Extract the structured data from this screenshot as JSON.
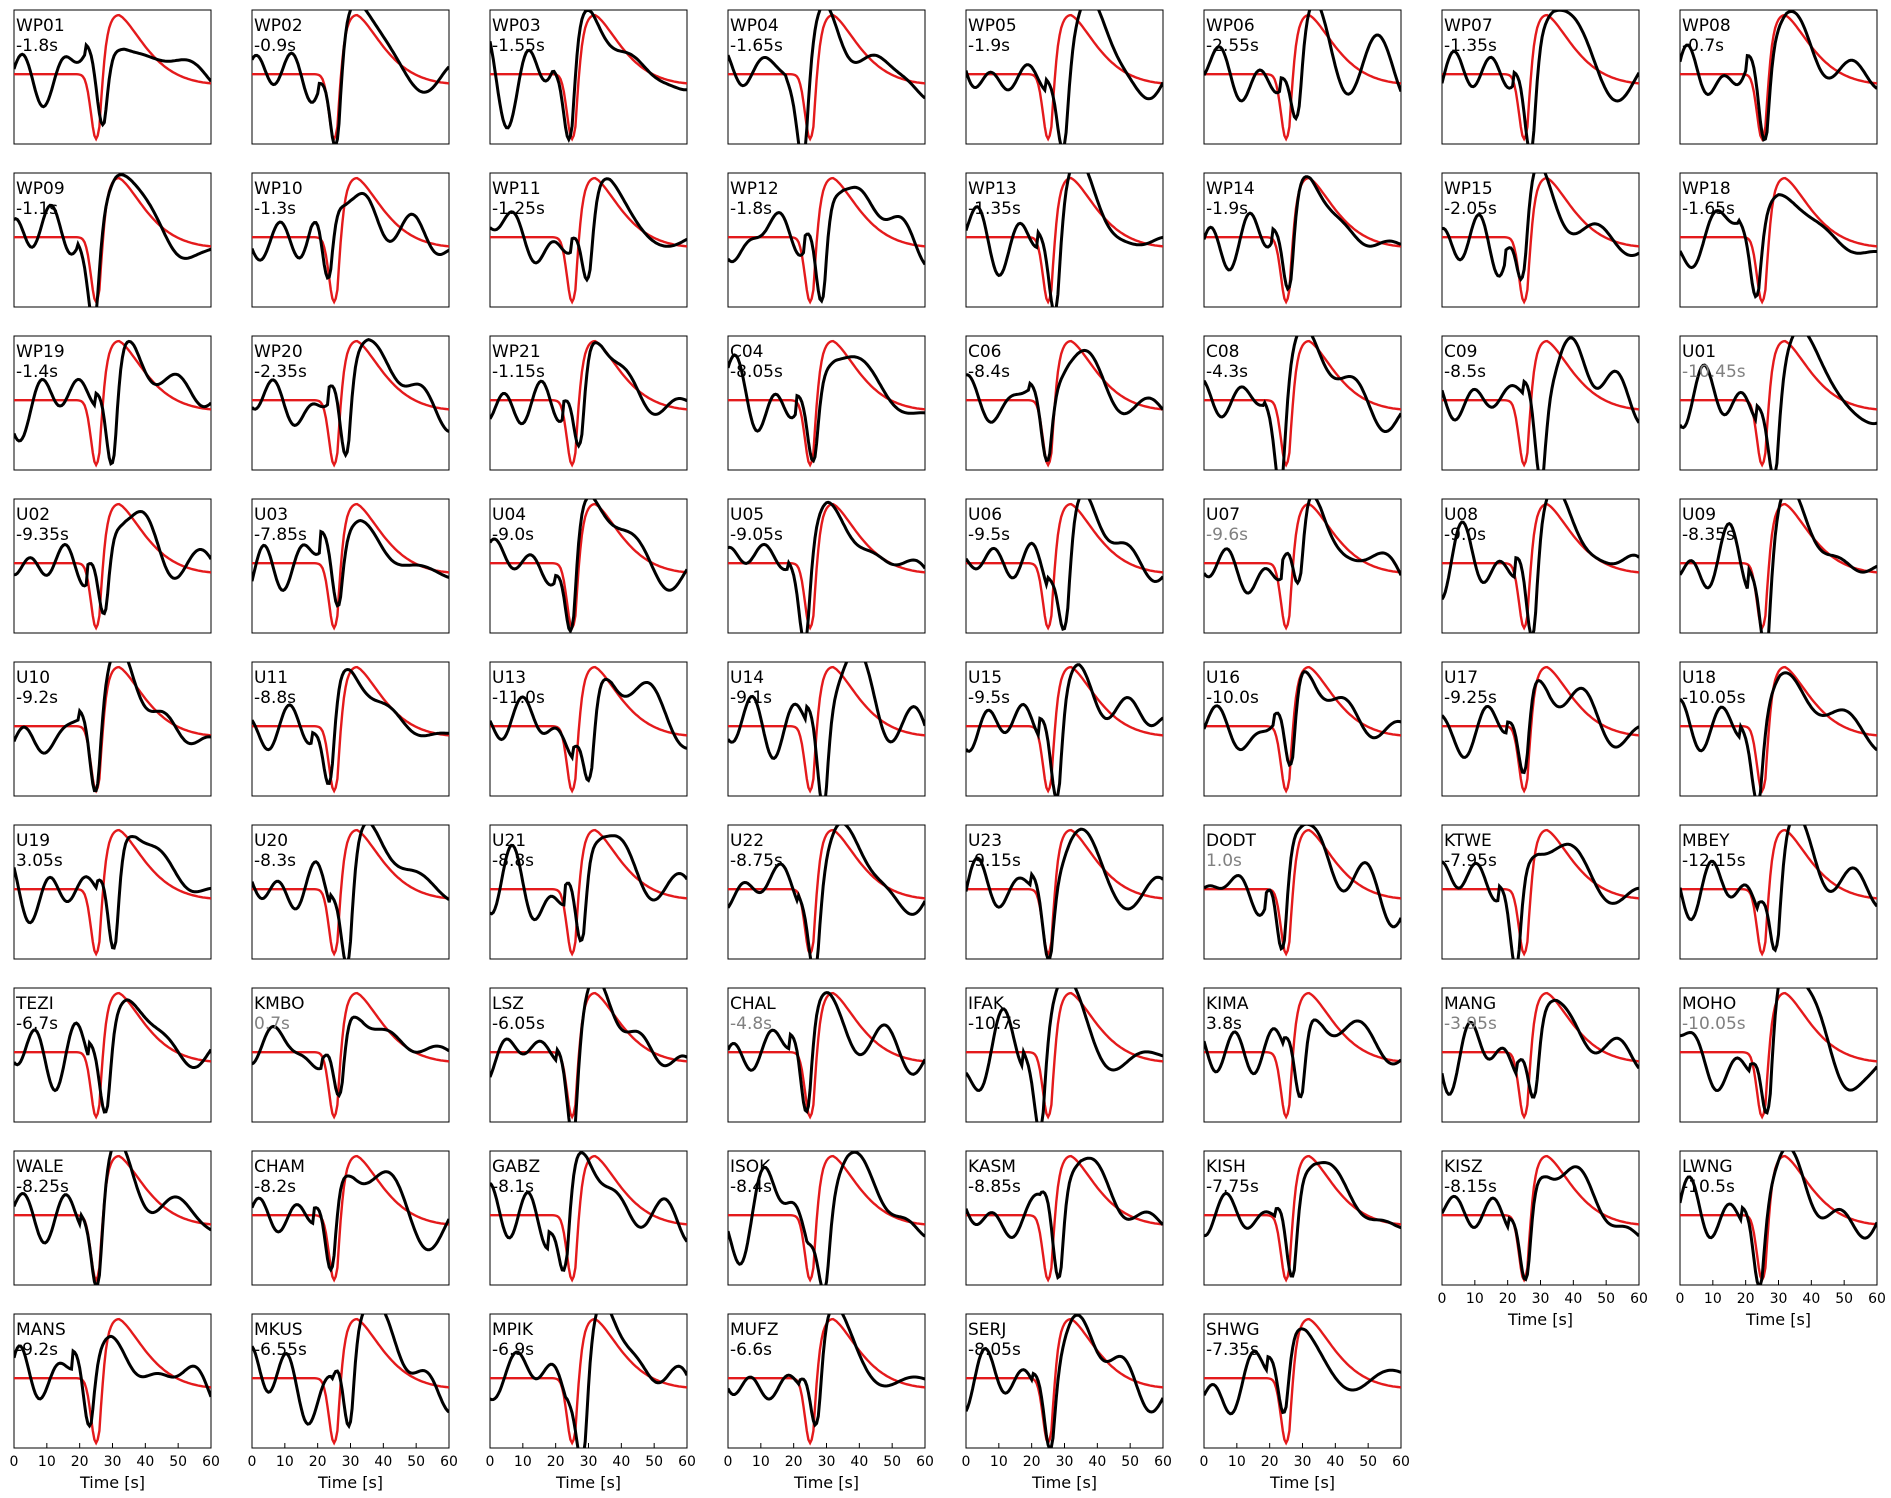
{
  "chart_data": {
    "type": "line",
    "layout": "small-multiples",
    "xlabel": "Time [s]",
    "xlim": [
      0,
      60
    ],
    "xticks": [
      0,
      10,
      20,
      30,
      40,
      50,
      60
    ],
    "series_styles": {
      "reference": "#e41a1c",
      "observed": "#000000",
      "label_normal": "#000000",
      "label_grey": "#808080"
    },
    "panels": [
      {
        "station": "WP01",
        "shift": "-1.8s",
        "grey": false,
        "variant": 0
      },
      {
        "station": "WP02",
        "shift": "-0.9s",
        "grey": false,
        "variant": 1
      },
      {
        "station": "WP03",
        "shift": "-1.55s",
        "grey": false,
        "variant": 2
      },
      {
        "station": "WP04",
        "shift": "-1.65s",
        "grey": false,
        "variant": 3
      },
      {
        "station": "WP05",
        "shift": "-1.9s",
        "grey": false,
        "variant": 4
      },
      {
        "station": "WP06",
        "shift": "-2.55s",
        "grey": false,
        "variant": 5
      },
      {
        "station": "WP07",
        "shift": "-1.35s",
        "grey": false,
        "variant": 6
      },
      {
        "station": "WP08",
        "shift": "-0.7s",
        "grey": false,
        "variant": 7
      },
      {
        "station": "WP09",
        "shift": "-1.1s",
        "grey": false,
        "variant": 8
      },
      {
        "station": "WP10",
        "shift": "-1.3s",
        "grey": false,
        "variant": 9
      },
      {
        "station": "WP11",
        "shift": "-1.25s",
        "grey": false,
        "variant": 10
      },
      {
        "station": "WP12",
        "shift": "-1.8s",
        "grey": false,
        "variant": 11
      },
      {
        "station": "WP13",
        "shift": "-1.35s",
        "grey": false,
        "variant": 12
      },
      {
        "station": "WP14",
        "shift": "-1.9s",
        "grey": false,
        "variant": 13
      },
      {
        "station": "WP15",
        "shift": "-2.05s",
        "grey": false,
        "variant": 14
      },
      {
        "station": "WP18",
        "shift": "-1.65s",
        "grey": false,
        "variant": 15
      },
      {
        "station": "WP19",
        "shift": "-1.4s",
        "grey": false,
        "variant": 16
      },
      {
        "station": "WP20",
        "shift": "-2.35s",
        "grey": false,
        "variant": 17
      },
      {
        "station": "WP21",
        "shift": "-1.15s",
        "grey": false,
        "variant": 18
      },
      {
        "station": "C04",
        "shift": "-8.05s",
        "grey": false,
        "variant": 19
      },
      {
        "station": "C06",
        "shift": "-8.4s",
        "grey": false,
        "variant": 20
      },
      {
        "station": "C08",
        "shift": "-4.3s",
        "grey": false,
        "variant": 21
      },
      {
        "station": "C09",
        "shift": "-8.5s",
        "grey": false,
        "variant": 22
      },
      {
        "station": "U01",
        "shift": "-10.45s",
        "grey": true,
        "variant": 23
      },
      {
        "station": "U02",
        "shift": "-9.35s",
        "grey": false,
        "variant": 24
      },
      {
        "station": "U03",
        "shift": "-7.85s",
        "grey": false,
        "variant": 25
      },
      {
        "station": "U04",
        "shift": "-9.0s",
        "grey": false,
        "variant": 26
      },
      {
        "station": "U05",
        "shift": "-9.05s",
        "grey": false,
        "variant": 27
      },
      {
        "station": "U06",
        "shift": "-9.5s",
        "grey": false,
        "variant": 28
      },
      {
        "station": "U07",
        "shift": "-9.6s",
        "grey": true,
        "variant": 29
      },
      {
        "station": "U08",
        "shift": "-9.0s",
        "grey": false,
        "variant": 30
      },
      {
        "station": "U09",
        "shift": "-8.35s",
        "grey": false,
        "variant": 31
      },
      {
        "station": "U10",
        "shift": "-9.2s",
        "grey": false,
        "variant": 32
      },
      {
        "station": "U11",
        "shift": "-8.8s",
        "grey": false,
        "variant": 33
      },
      {
        "station": "U13",
        "shift": "-11.0s",
        "grey": false,
        "variant": 34
      },
      {
        "station": "U14",
        "shift": "-9.1s",
        "grey": false,
        "variant": 35
      },
      {
        "station": "U15",
        "shift": "-9.5s",
        "grey": false,
        "variant": 36
      },
      {
        "station": "U16",
        "shift": "-10.0s",
        "grey": false,
        "variant": 37
      },
      {
        "station": "U17",
        "shift": "-9.25s",
        "grey": false,
        "variant": 38
      },
      {
        "station": "U18",
        "shift": "-10.05s",
        "grey": false,
        "variant": 39
      },
      {
        "station": "U19",
        "shift": "3.05s",
        "grey": false,
        "variant": 40
      },
      {
        "station": "U20",
        "shift": "-8.3s",
        "grey": false,
        "variant": 41
      },
      {
        "station": "U21",
        "shift": "-8.8s",
        "grey": false,
        "variant": 42
      },
      {
        "station": "U22",
        "shift": "-8.75s",
        "grey": false,
        "variant": 43
      },
      {
        "station": "U23",
        "shift": "-9.15s",
        "grey": false,
        "variant": 44
      },
      {
        "station": "DODT",
        "shift": "1.0s",
        "grey": true,
        "variant": 45
      },
      {
        "station": "KTWE",
        "shift": "-7.95s",
        "grey": false,
        "variant": 46
      },
      {
        "station": "MBEY",
        "shift": "-12.15s",
        "grey": false,
        "variant": 47
      },
      {
        "station": "TEZI",
        "shift": "-6.7s",
        "grey": false,
        "variant": 48
      },
      {
        "station": "KMBO",
        "shift": "0.7s",
        "grey": true,
        "variant": 49
      },
      {
        "station": "LSZ",
        "shift": "-6.05s",
        "grey": false,
        "variant": 50
      },
      {
        "station": "CHAL",
        "shift": "-4.8s",
        "grey": true,
        "variant": 51
      },
      {
        "station": "IFAK",
        "shift": "-10.7s",
        "grey": false,
        "variant": 52
      },
      {
        "station": "KIMA",
        "shift": "3.8s",
        "grey": false,
        "variant": 53
      },
      {
        "station": "MANG",
        "shift": "-3.95s",
        "grey": true,
        "variant": 54
      },
      {
        "station": "MOHO",
        "shift": "-10.05s",
        "grey": true,
        "variant": 55
      },
      {
        "station": "WALE",
        "shift": "-8.25s",
        "grey": false,
        "variant": 56
      },
      {
        "station": "CHAM",
        "shift": "-8.2s",
        "grey": false,
        "variant": 57
      },
      {
        "station": "GABZ",
        "shift": "-8.1s",
        "grey": false,
        "variant": 58
      },
      {
        "station": "ISOK",
        "shift": "-8.4s",
        "grey": false,
        "variant": 59
      },
      {
        "station": "KASM",
        "shift": "-8.85s",
        "grey": false,
        "variant": 60
      },
      {
        "station": "KISH",
        "shift": "-7.75s",
        "grey": false,
        "variant": 61
      },
      {
        "station": "KISZ",
        "shift": "-8.15s",
        "grey": false,
        "variant": 62
      },
      {
        "station": "LWNG",
        "shift": "-10.5s",
        "grey": false,
        "variant": 63
      },
      {
        "station": "MANS",
        "shift": "-9.2s",
        "grey": false,
        "variant": 64
      },
      {
        "station": "MKUS",
        "shift": "-6.55s",
        "grey": false,
        "variant": 65
      },
      {
        "station": "MPIK",
        "shift": "-6.9s",
        "grey": false,
        "variant": 66
      },
      {
        "station": "MUFZ",
        "shift": "-6.6s",
        "grey": false,
        "variant": 67
      },
      {
        "station": "SERJ",
        "shift": "-8.05s",
        "grey": false,
        "variant": 68
      },
      {
        "station": "SHWG",
        "shift": "-7.35s",
        "grey": false,
        "variant": 69
      }
    ]
  }
}
